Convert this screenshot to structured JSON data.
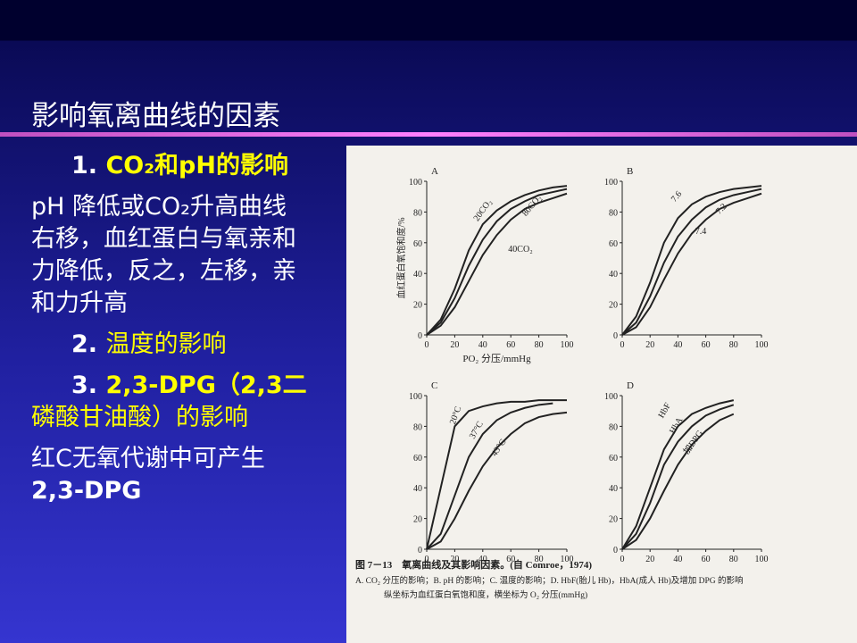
{
  "slide": {
    "title": "影响氧离曲线的因素",
    "paragraphs": [
      {
        "lines": [
          [
            {
              "text": "1. ",
              "color": "#ffffff",
              "bold": true
            },
            {
              "text": "CO₂和pH的影响",
              "color": "#ffff00",
              "bold": true
            }
          ]
        ]
      },
      {
        "lines": [
          [
            {
              "text": "pH 降低或CO₂升高曲线",
              "color": "#ffffff",
              "bold": false
            }
          ],
          [
            {
              "text": "右移，血红蛋白与氧亲和",
              "color": "#ffffff",
              "bold": false
            }
          ],
          [
            {
              "text": "力降低，反之，左移，亲",
              "color": "#ffffff",
              "bold": false
            }
          ],
          [
            {
              "text": "和力升高",
              "color": "#ffffff",
              "bold": false
            }
          ]
        ]
      },
      {
        "lines": [
          [
            {
              "text": "2. ",
              "color": "#ffffff",
              "bold": true
            },
            {
              "text": "温度的影响",
              "color": "#ffff00",
              "bold": false
            }
          ]
        ]
      },
      {
        "lines": [
          [
            {
              "text": "3. ",
              "color": "#ffffff",
              "bold": true
            },
            {
              "text": "2,3-DPG（2,3二",
              "color": "#ffff00",
              "bold": true
            }
          ],
          [
            {
              "text": "磷酸甘油酸）的影响",
              "color": "#ffff00",
              "bold": false
            }
          ]
        ]
      },
      {
        "lines": [
          [
            {
              "text": "红C无氧代谢中可产生",
              "color": "#ffffff",
              "bold": false
            }
          ],
          [
            {
              "text": "2,3-DPG",
              "color": "#ffffff",
              "bold": true
            }
          ]
        ]
      }
    ]
  },
  "figure": {
    "caption": [
      "图 7－13　氧离曲线及其影响因素。(自 Comroe，1974)",
      "A. CO₂ 分压的影响；B. pH 的影响；C. 温度的影响；D. HbF(胎儿 Hb)，HbA(成人 Hb)及增加 DPG 的影响",
      "纵坐标为血红蛋白氧饱和度，横坐标为 O₂ 分压(mmHg)"
    ]
  },
  "chart_data": [
    {
      "type": "line",
      "label": "A",
      "y_label": "血红蛋白氧饱和度/%",
      "x_label": "PO₂ 分压/mmHg",
      "color": "#222222",
      "xlim": [
        0,
        100
      ],
      "ylim": [
        0,
        100
      ],
      "xticks": [
        0,
        20,
        40,
        60,
        80,
        100
      ],
      "yticks": [
        0,
        20,
        40,
        60,
        80,
        100
      ],
      "x": [
        0,
        10,
        20,
        30,
        40,
        50,
        60,
        70,
        80,
        90,
        100
      ],
      "series": [
        {
          "name": "20CO₂",
          "values": [
            0,
            10,
            30,
            55,
            72,
            81,
            87,
            91,
            94,
            96,
            97
          ]
        },
        {
          "name": "40CO₂",
          "values": [
            0,
            8,
            24,
            45,
            62,
            74,
            82,
            87,
            91,
            93,
            95
          ]
        },
        {
          "name": "80CO₂",
          "values": [
            0,
            6,
            18,
            35,
            52,
            65,
            75,
            82,
            86,
            89,
            92
          ]
        }
      ]
    },
    {
      "type": "line",
      "label": "B",
      "color": "#222222",
      "xlim": [
        0,
        100
      ],
      "ylim": [
        0,
        100
      ],
      "xticks": [
        0,
        20,
        40,
        60,
        80,
        100
      ],
      "yticks": [
        0,
        20,
        40,
        60,
        80,
        100
      ],
      "x": [
        0,
        10,
        20,
        30,
        40,
        50,
        60,
        70,
        80,
        90,
        100
      ],
      "series": [
        {
          "name": "7.6",
          "values": [
            0,
            12,
            34,
            60,
            76,
            85,
            90,
            93,
            95,
            96,
            97
          ]
        },
        {
          "name": "7.4",
          "values": [
            0,
            8,
            25,
            47,
            64,
            75,
            83,
            88,
            91,
            93,
            95
          ]
        },
        {
          "name": "7.2",
          "values": [
            0,
            5,
            18,
            36,
            53,
            66,
            75,
            82,
            86,
            89,
            92
          ]
        }
      ]
    },
    {
      "type": "line",
      "label": "C",
      "color": "#222222",
      "xlim": [
        0,
        100
      ],
      "ylim": [
        0,
        100
      ],
      "xticks": [
        0,
        20,
        40,
        60,
        80,
        100
      ],
      "yticks": [
        0,
        20,
        40,
        60,
        80,
        100
      ],
      "x": [
        0,
        10,
        20,
        30,
        40,
        50,
        60,
        70,
        80,
        90,
        100
      ],
      "series": [
        {
          "name": "20°C",
          "values": [
            0,
            40,
            80,
            90,
            93,
            95,
            96,
            96,
            97,
            97,
            97
          ]
        },
        {
          "name": "37°C",
          "values": [
            0,
            10,
            35,
            60,
            75,
            84,
            89,
            92,
            94,
            95,
            null
          ]
        },
        {
          "name": "43°C",
          "values": [
            0,
            5,
            20,
            38,
            54,
            66,
            75,
            82,
            86,
            88,
            89
          ]
        }
      ]
    },
    {
      "type": "line",
      "label": "D",
      "color": "#222222",
      "xlim": [
        0,
        100
      ],
      "ylim": [
        0,
        100
      ],
      "xticks": [
        0,
        20,
        40,
        60,
        80,
        100
      ],
      "yticks": [
        0,
        20,
        40,
        60,
        80,
        100
      ],
      "x": [
        0,
        10,
        20,
        30,
        40,
        50,
        60,
        70,
        80
      ],
      "series": [
        {
          "name": "HbF",
          "values": [
            0,
            15,
            40,
            65,
            80,
            88,
            92,
            95,
            97
          ]
        },
        {
          "name": "HbA",
          "values": [
            0,
            10,
            30,
            55,
            70,
            80,
            87,
            91,
            94
          ]
        },
        {
          "name": "加DPG",
          "values": [
            0,
            6,
            20,
            38,
            55,
            68,
            77,
            84,
            88
          ]
        }
      ]
    }
  ]
}
